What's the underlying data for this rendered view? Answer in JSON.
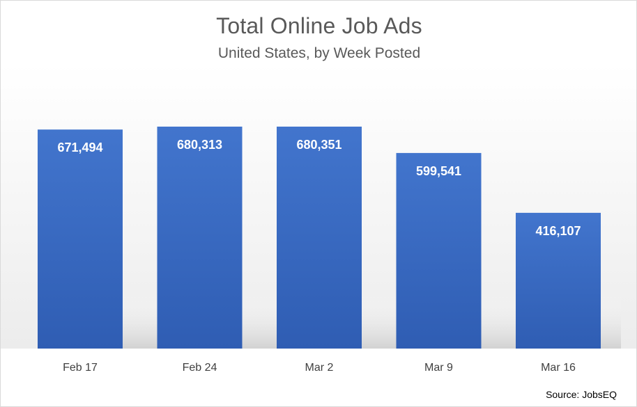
{
  "chart_data": {
    "type": "bar",
    "title": "Total Online Job Ads",
    "subtitle": "United States, by Week Posted",
    "categories": [
      "Feb 17",
      "Feb 24",
      "Mar 2",
      "Mar 9",
      "Mar 16"
    ],
    "values": [
      671494,
      680313,
      680351,
      599541,
      416107
    ],
    "value_labels": [
      "671,494",
      "680,313",
      "680,351",
      "599,541",
      "416,107"
    ],
    "xlabel": "",
    "ylabel": "",
    "ylim": [
      0,
      680351
    ],
    "grid": false,
    "legend": "none",
    "bar_color": "#3a6cc4",
    "source": "Source: JobsEQ"
  }
}
